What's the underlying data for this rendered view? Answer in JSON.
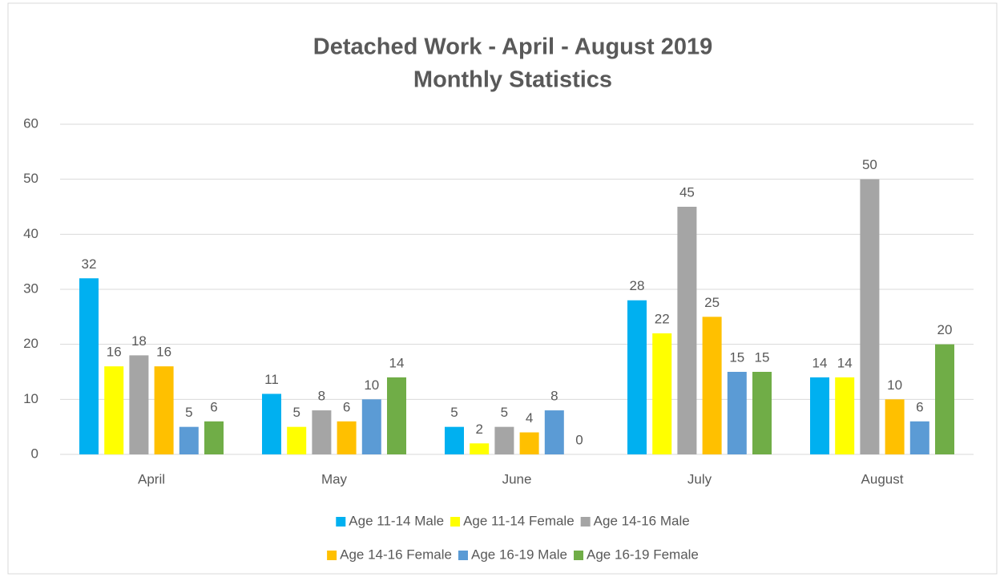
{
  "chart_data": {
    "type": "bar",
    "title": "Detached Work - April - August 2019",
    "subtitle": "Monthly Statistics",
    "categories": [
      "April",
      "May",
      "June",
      "July",
      "August"
    ],
    "series": [
      {
        "name": "Age 11-14 Male",
        "color": "#00b0f0",
        "values": [
          32,
          11,
          5,
          28,
          14
        ]
      },
      {
        "name": "Age 11-14 Female",
        "color": "#ffff00",
        "values": [
          16,
          5,
          2,
          22,
          14
        ]
      },
      {
        "name": "Age 14-16 Male",
        "color": "#a5a5a5",
        "values": [
          18,
          8,
          5,
          45,
          50
        ]
      },
      {
        "name": "Age 14-16 Female",
        "color": "#ffc000",
        "values": [
          16,
          6,
          4,
          25,
          10
        ]
      },
      {
        "name": "Age 16-19 Male",
        "color": "#5b9bd5",
        "values": [
          5,
          10,
          8,
          15,
          6
        ]
      },
      {
        "name": "Age 16-19 Female",
        "color": "#70ad47",
        "values": [
          6,
          14,
          0,
          15,
          20
        ]
      }
    ],
    "ylim": [
      0,
      60
    ],
    "yticks": [
      0,
      10,
      20,
      30,
      40,
      50,
      60
    ],
    "grid": true,
    "legend": "bottom"
  }
}
